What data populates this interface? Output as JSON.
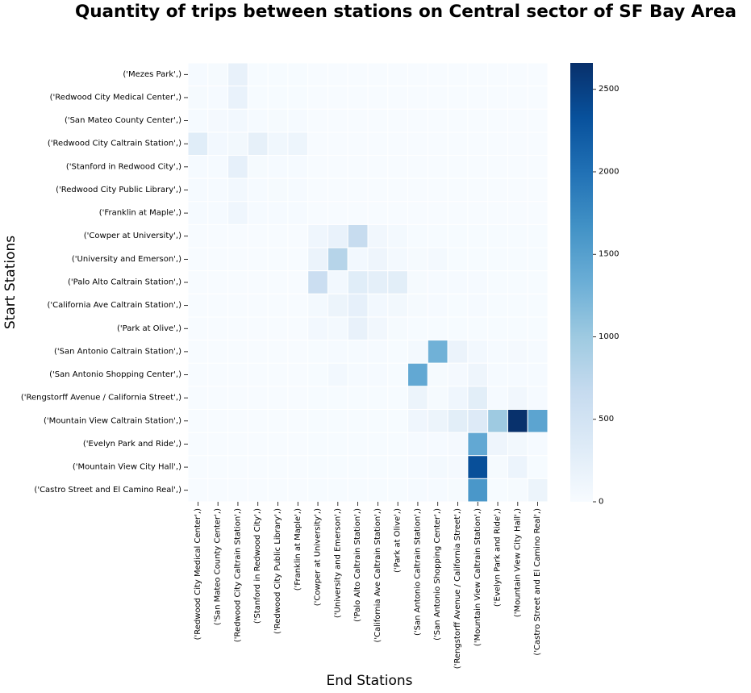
{
  "chart_data": {
    "type": "heatmap",
    "title": "Quantity of trips between stations on Central sector of SF Bay Area",
    "xlabel": "End Stations",
    "ylabel": "Start Stations",
    "colormap": "Blues",
    "colorbar": {
      "min": 0,
      "max": 2660,
      "ticks": [
        0,
        500,
        1000,
        1500,
        2000,
        2500
      ]
    },
    "grid_lines": "white",
    "row_labels": [
      "('Mezes Park',)",
      "('Redwood City Medical Center',)",
      "('San Mateo County Center',)",
      "('Redwood City Caltrain Station',)",
      "('Stanford in Redwood City',)",
      "('Redwood City Public Library',)",
      "('Franklin at Maple',)",
      "('Cowper at University',)",
      "('University and Emerson',)",
      "('Palo Alto Caltrain Station',)",
      "('California Ave Caltrain Station',)",
      "('Park at Olive',)",
      "('San Antonio Caltrain Station',)",
      "('San Antonio Shopping Center',)",
      "('Rengstorff Avenue / California Street',)",
      "('Mountain View Caltrain Station',)",
      "('Evelyn Park and Ride',)",
      "('Mountain View City Hall',)",
      "('Castro Street and El Camino Real',)"
    ],
    "col_labels": [
      "('Redwood City Medical Center',)",
      "('San Mateo County Center',)",
      "('Redwood City Caltrain Station',)",
      "('Stanford in Redwood City',)",
      "('Redwood City Public Library',)",
      "('Franklin at Maple',)",
      "('Cowper at University',)",
      "('University and Emerson',)",
      "('Palo Alto Caltrain Station',)",
      "('California Ave Caltrain Station',)",
      "('Park at Olive',)",
      "('San Antonio Caltrain Station',)",
      "('San Antonio Shopping Center',)",
      "('Rengstorff Avenue / California Street',)",
      "('Mountain View Caltrain Station',)",
      "('Evelyn Park and Ride',)",
      "('Mountain View City Hall',)",
      "('Castro Street and El Camino Real',)"
    ],
    "values": [
      [
        20,
        30,
        200,
        10,
        10,
        10,
        5,
        5,
        5,
        5,
        5,
        5,
        5,
        5,
        5,
        5,
        5,
        5
      ],
      [
        30,
        20,
        180,
        10,
        10,
        10,
        5,
        5,
        5,
        5,
        5,
        5,
        5,
        5,
        5,
        5,
        5,
        5
      ],
      [
        20,
        40,
        60,
        20,
        30,
        20,
        5,
        5,
        5,
        5,
        5,
        5,
        5,
        5,
        5,
        5,
        5,
        5
      ],
      [
        300,
        60,
        70,
        230,
        90,
        130,
        5,
        5,
        5,
        5,
        5,
        5,
        5,
        5,
        5,
        5,
        5,
        5
      ],
      [
        20,
        20,
        220,
        30,
        20,
        20,
        5,
        5,
        5,
        5,
        5,
        5,
        5,
        5,
        5,
        5,
        5,
        5
      ],
      [
        20,
        20,
        60,
        20,
        30,
        20,
        5,
        5,
        5,
        5,
        5,
        5,
        5,
        5,
        5,
        5,
        5,
        5
      ],
      [
        20,
        20,
        100,
        20,
        20,
        20,
        5,
        5,
        5,
        5,
        5,
        5,
        5,
        5,
        5,
        5,
        5,
        5
      ],
      [
        5,
        5,
        5,
        5,
        5,
        5,
        100,
        180,
        650,
        80,
        50,
        10,
        10,
        10,
        10,
        10,
        10,
        10
      ],
      [
        5,
        5,
        5,
        5,
        5,
        5,
        160,
        800,
        60,
        120,
        50,
        30,
        50,
        10,
        10,
        10,
        10,
        10
      ],
      [
        5,
        5,
        5,
        5,
        5,
        5,
        600,
        60,
        300,
        250,
        280,
        30,
        20,
        20,
        20,
        10,
        10,
        10
      ],
      [
        5,
        5,
        5,
        5,
        5,
        5,
        50,
        150,
        220,
        60,
        70,
        30,
        20,
        10,
        20,
        10,
        10,
        10
      ],
      [
        5,
        5,
        5,
        5,
        5,
        5,
        60,
        50,
        200,
        80,
        30,
        10,
        10,
        10,
        10,
        10,
        10,
        10
      ],
      [
        5,
        5,
        5,
        5,
        5,
        5,
        10,
        20,
        20,
        20,
        10,
        50,
        1300,
        160,
        60,
        20,
        40,
        20
      ],
      [
        5,
        5,
        5,
        5,
        5,
        5,
        10,
        60,
        20,
        20,
        10,
        1400,
        30,
        40,
        120,
        20,
        20,
        20
      ],
      [
        5,
        5,
        5,
        5,
        5,
        5,
        10,
        10,
        10,
        10,
        10,
        150,
        30,
        100,
        280,
        20,
        80,
        20
      ],
      [
        5,
        5,
        5,
        5,
        5,
        5,
        10,
        10,
        10,
        10,
        10,
        100,
        150,
        280,
        350,
        1000,
        2650,
        1450
      ],
      [
        5,
        5,
        5,
        5,
        5,
        5,
        10,
        10,
        10,
        10,
        10,
        20,
        20,
        40,
        1400,
        120,
        70,
        20
      ],
      [
        5,
        5,
        5,
        5,
        5,
        5,
        10,
        10,
        10,
        10,
        10,
        20,
        50,
        40,
        2350,
        30,
        140,
        10
      ],
      [
        5,
        5,
        5,
        5,
        5,
        5,
        10,
        10,
        10,
        10,
        10,
        20,
        20,
        30,
        1600,
        10,
        30,
        150
      ]
    ]
  }
}
